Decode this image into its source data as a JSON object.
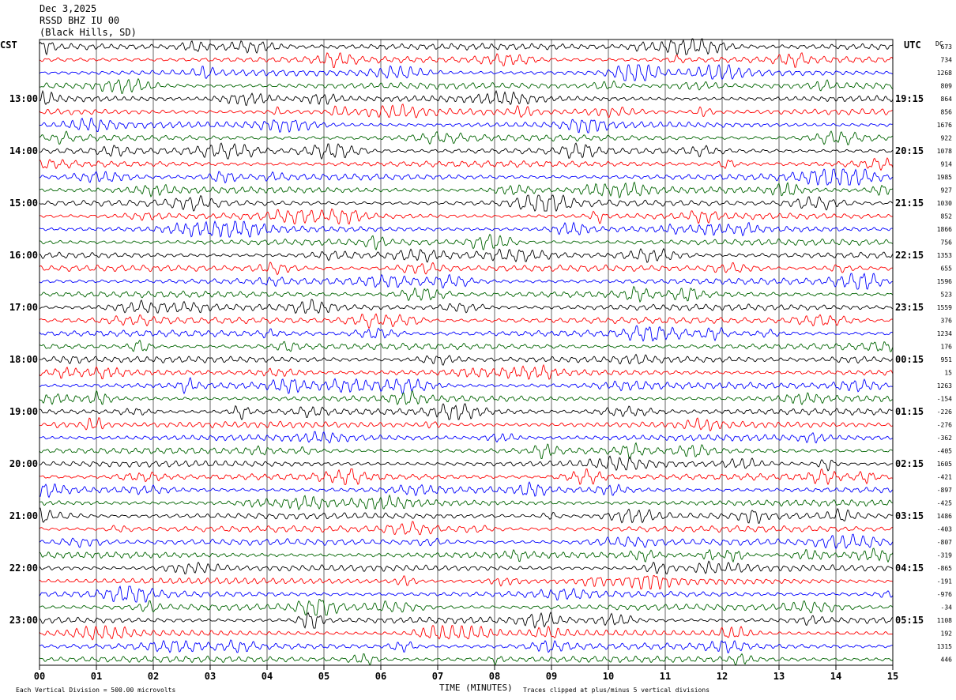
{
  "header": {
    "date": "Dec 3,2025",
    "station": "RSSD BHZ IU 00",
    "location": "(Black Hills, SD)"
  },
  "chart_data": {
    "type": "line",
    "title": "RSSD BHZ IU 00",
    "left_timezone": "CST",
    "right_timezone": "UTC",
    "dc_label": "DC",
    "xlabel": "TIME (MINUTES)",
    "xlim": [
      0,
      15
    ],
    "x_ticks": [
      "00",
      "01",
      "02",
      "03",
      "04",
      "05",
      "06",
      "07",
      "08",
      "09",
      "10",
      "11",
      "12",
      "13",
      "14",
      "15"
    ],
    "trace_colors": [
      "#000000",
      "#ff0000",
      "#0000ff",
      "#006400"
    ],
    "trace_count": 48,
    "traces_per_hour": 4,
    "cst_hour_labels": [
      "13:00",
      "14:00",
      "15:00",
      "16:00",
      "17:00",
      "18:00",
      "19:00",
      "20:00",
      "21:00",
      "22:00",
      "23:00"
    ],
    "utc_hour_labels": [
      "19:15",
      "20:15",
      "21:15",
      "22:15",
      "23:15",
      "00:15",
      "01:15",
      "02:15",
      "03:15",
      "04:15",
      "05:15"
    ],
    "dc_offsets": [
      "673",
      "734",
      "1268",
      "809",
      "864",
      "856",
      "1676",
      "922",
      "1078",
      "914",
      "1985",
      "927",
      "1030",
      "852",
      "1866",
      "756",
      "1353",
      "655",
      "1596",
      "523",
      "1559",
      "376",
      "1234",
      "176",
      "951",
      "15",
      "1263",
      "-154",
      "-226",
      "-276",
      "-362",
      "-405",
      "1605",
      "-421",
      "-897",
      "-425",
      "1486",
      "-403",
      "-807",
      "-319",
      "-865",
      "-191",
      "-976",
      "-34",
      "1108",
      "192",
      "1315",
      "446"
    ],
    "footer": {
      "scale": "Each Vertical Division =  500.00 microvolts",
      "clip": "Traces clipped at plus/minus 5 vertical divisions"
    },
    "grid": true
  }
}
